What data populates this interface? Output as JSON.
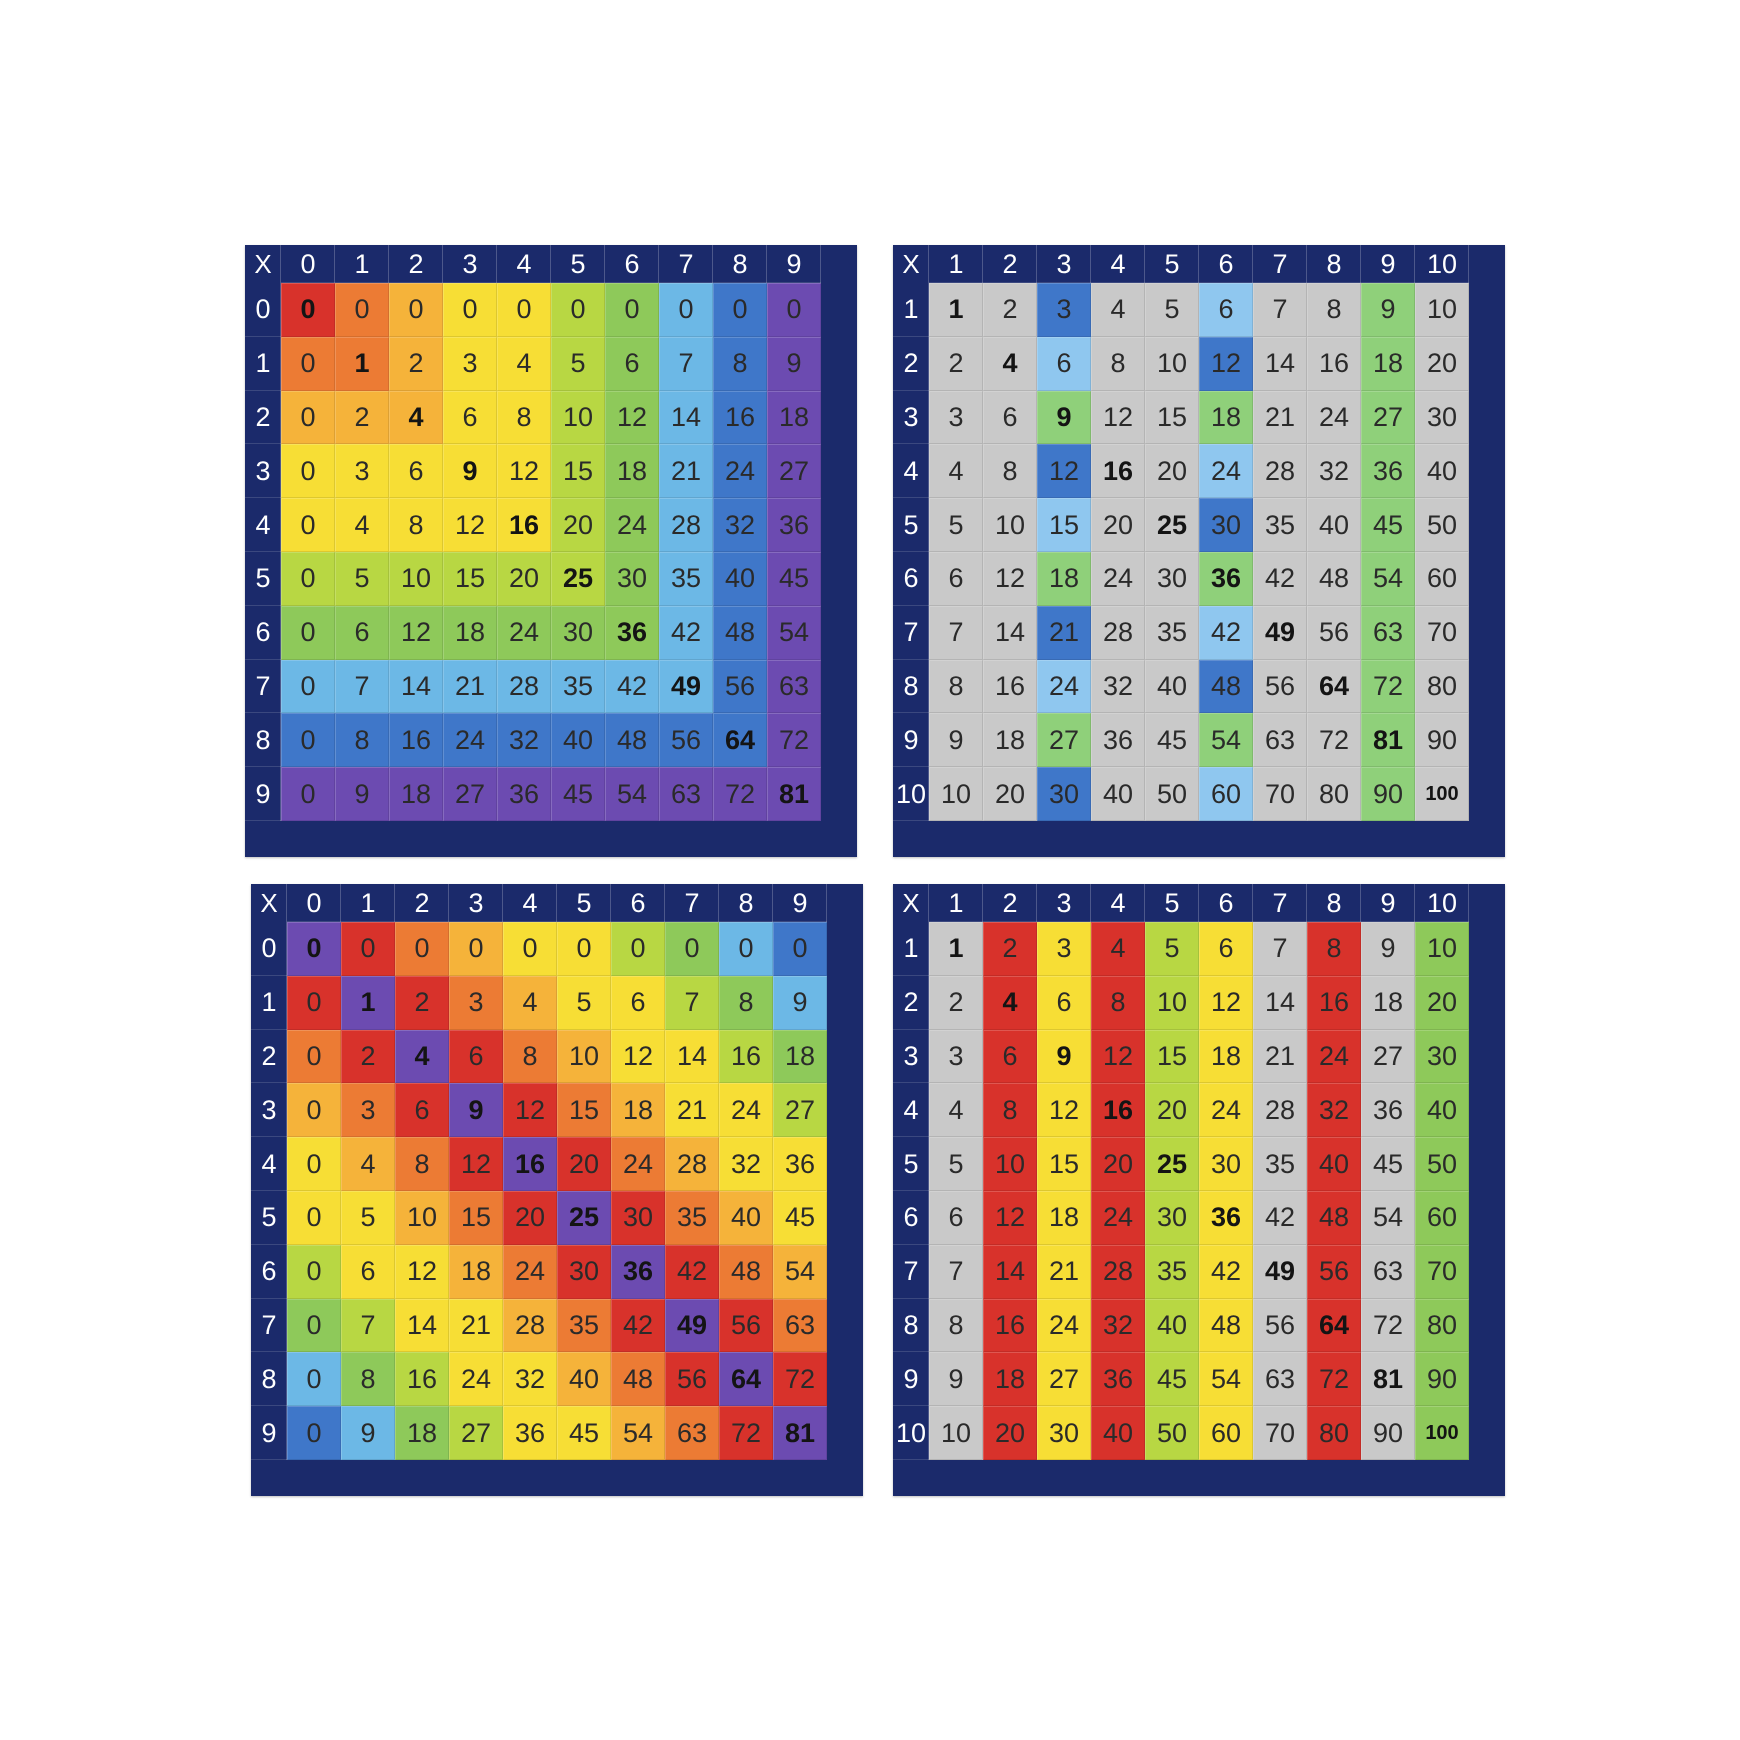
{
  "boards": [
    {
      "corner": "X",
      "cols": [
        "0",
        "1",
        "2",
        "3",
        "4",
        "5",
        "6",
        "7",
        "8",
        "9"
      ],
      "rows": [
        "0",
        "1",
        "2",
        "3",
        "4",
        "5",
        "6",
        "7",
        "8",
        "9"
      ],
      "scheme": "diagonal-bands",
      "values": [
        [
          0,
          0,
          0,
          0,
          0,
          0,
          0,
          0,
          0,
          0
        ],
        [
          0,
          1,
          2,
          3,
          4,
          5,
          6,
          7,
          8,
          9
        ],
        [
          0,
          2,
          4,
          6,
          8,
          10,
          12,
          14,
          16,
          18
        ],
        [
          0,
          3,
          6,
          9,
          12,
          15,
          18,
          21,
          24,
          27
        ],
        [
          0,
          4,
          8,
          12,
          16,
          20,
          24,
          28,
          32,
          36
        ],
        [
          0,
          5,
          10,
          15,
          20,
          25,
          30,
          35,
          40,
          45
        ],
        [
          0,
          6,
          12,
          18,
          24,
          30,
          36,
          42,
          48,
          54
        ],
        [
          0,
          7,
          14,
          21,
          28,
          35,
          42,
          49,
          56,
          63
        ],
        [
          0,
          8,
          16,
          24,
          32,
          40,
          48,
          56,
          64,
          72
        ],
        [
          0,
          9,
          18,
          27,
          36,
          45,
          54,
          63,
          72,
          81
        ]
      ]
    },
    {
      "corner": "X",
      "cols": [
        "1",
        "2",
        "3",
        "4",
        "5",
        "6",
        "7",
        "8",
        "9",
        "10"
      ],
      "rows": [
        "1",
        "2",
        "3",
        "4",
        "5",
        "6",
        "7",
        "8",
        "9",
        "10"
      ],
      "scheme": "multiples-of-3-highlight",
      "values": [
        [
          1,
          2,
          3,
          4,
          5,
          6,
          7,
          8,
          9,
          10
        ],
        [
          2,
          4,
          6,
          8,
          10,
          12,
          14,
          16,
          18,
          20
        ],
        [
          3,
          6,
          9,
          12,
          15,
          18,
          21,
          24,
          27,
          30
        ],
        [
          4,
          8,
          12,
          16,
          20,
          24,
          28,
          32,
          36,
          40
        ],
        [
          5,
          10,
          15,
          20,
          25,
          30,
          35,
          40,
          45,
          50
        ],
        [
          6,
          12,
          18,
          24,
          30,
          36,
          42,
          48,
          54,
          60
        ],
        [
          7,
          14,
          21,
          28,
          35,
          42,
          49,
          56,
          63,
          70
        ],
        [
          8,
          16,
          24,
          32,
          40,
          48,
          56,
          64,
          72,
          80
        ],
        [
          9,
          18,
          27,
          36,
          45,
          54,
          63,
          72,
          81,
          90
        ],
        [
          10,
          20,
          30,
          40,
          50,
          60,
          70,
          80,
          90,
          100
        ]
      ]
    },
    {
      "corner": "X",
      "cols": [
        "0",
        "1",
        "2",
        "3",
        "4",
        "5",
        "6",
        "7",
        "8",
        "9"
      ],
      "rows": [
        "0",
        "1",
        "2",
        "3",
        "4",
        "5",
        "6",
        "7",
        "8",
        "9"
      ],
      "scheme": "diagonal-stripes",
      "values": [
        [
          0,
          0,
          0,
          0,
          0,
          0,
          0,
          0,
          0,
          0
        ],
        [
          0,
          1,
          2,
          3,
          4,
          5,
          6,
          7,
          8,
          9
        ],
        [
          0,
          2,
          4,
          6,
          8,
          10,
          12,
          14,
          16,
          18
        ],
        [
          0,
          3,
          6,
          9,
          12,
          15,
          18,
          21,
          24,
          27
        ],
        [
          0,
          4,
          8,
          12,
          16,
          20,
          24,
          28,
          32,
          36
        ],
        [
          0,
          5,
          10,
          15,
          20,
          25,
          30,
          35,
          40,
          45
        ],
        [
          0,
          6,
          12,
          18,
          24,
          30,
          36,
          42,
          48,
          54
        ],
        [
          0,
          7,
          14,
          21,
          28,
          35,
          42,
          49,
          56,
          63
        ],
        [
          0,
          8,
          16,
          24,
          32,
          40,
          48,
          56,
          64,
          72
        ],
        [
          0,
          9,
          18,
          27,
          36,
          45,
          54,
          63,
          72,
          81
        ]
      ]
    },
    {
      "corner": "X",
      "cols": [
        "1",
        "2",
        "3",
        "4",
        "5",
        "6",
        "7",
        "8",
        "9",
        "10"
      ],
      "rows": [
        "1",
        "2",
        "3",
        "4",
        "5",
        "6",
        "7",
        "8",
        "9",
        "10"
      ],
      "scheme": "column-stripes",
      "values": [
        [
          1,
          2,
          3,
          4,
          5,
          6,
          7,
          8,
          9,
          10
        ],
        [
          2,
          4,
          6,
          8,
          10,
          12,
          14,
          16,
          18,
          20
        ],
        [
          3,
          6,
          9,
          12,
          15,
          18,
          21,
          24,
          27,
          30
        ],
        [
          4,
          8,
          12,
          16,
          20,
          24,
          28,
          32,
          36,
          40
        ],
        [
          5,
          10,
          15,
          20,
          25,
          30,
          35,
          40,
          45,
          50
        ],
        [
          6,
          12,
          18,
          24,
          30,
          36,
          42,
          48,
          54,
          60
        ],
        [
          7,
          14,
          21,
          28,
          35,
          42,
          49,
          56,
          63,
          70
        ],
        [
          8,
          16,
          24,
          32,
          40,
          48,
          56,
          64,
          72,
          80
        ],
        [
          9,
          18,
          27,
          36,
          45,
          54,
          63,
          72,
          81,
          90
        ],
        [
          10,
          20,
          30,
          40,
          50,
          60,
          70,
          80,
          90,
          100
        ]
      ]
    }
  ],
  "colors": {
    "frame": "#1b2a6b",
    "red": "#d8322b",
    "orange": "#ec7b34",
    "amber": "#f5b33a",
    "yellow": "#f7de35",
    "lime": "#b8d743",
    "green": "#8ec95a",
    "sky": "#6cb8e6",
    "blue": "#3f77c9",
    "purple": "#6c4bb1",
    "grey": "#c9c9c9",
    "lightblue": "#8fc7ef",
    "lightgreen": "#8fd07a",
    "board4_columns": [
      "#c9c9c9",
      "#d8322b",
      "#f7de35",
      "#d8322b",
      "#b8d743",
      "#f7de35",
      "#c9c9c9",
      "#d8322b",
      "#c9c9c9",
      "#8ec95a"
    ]
  }
}
